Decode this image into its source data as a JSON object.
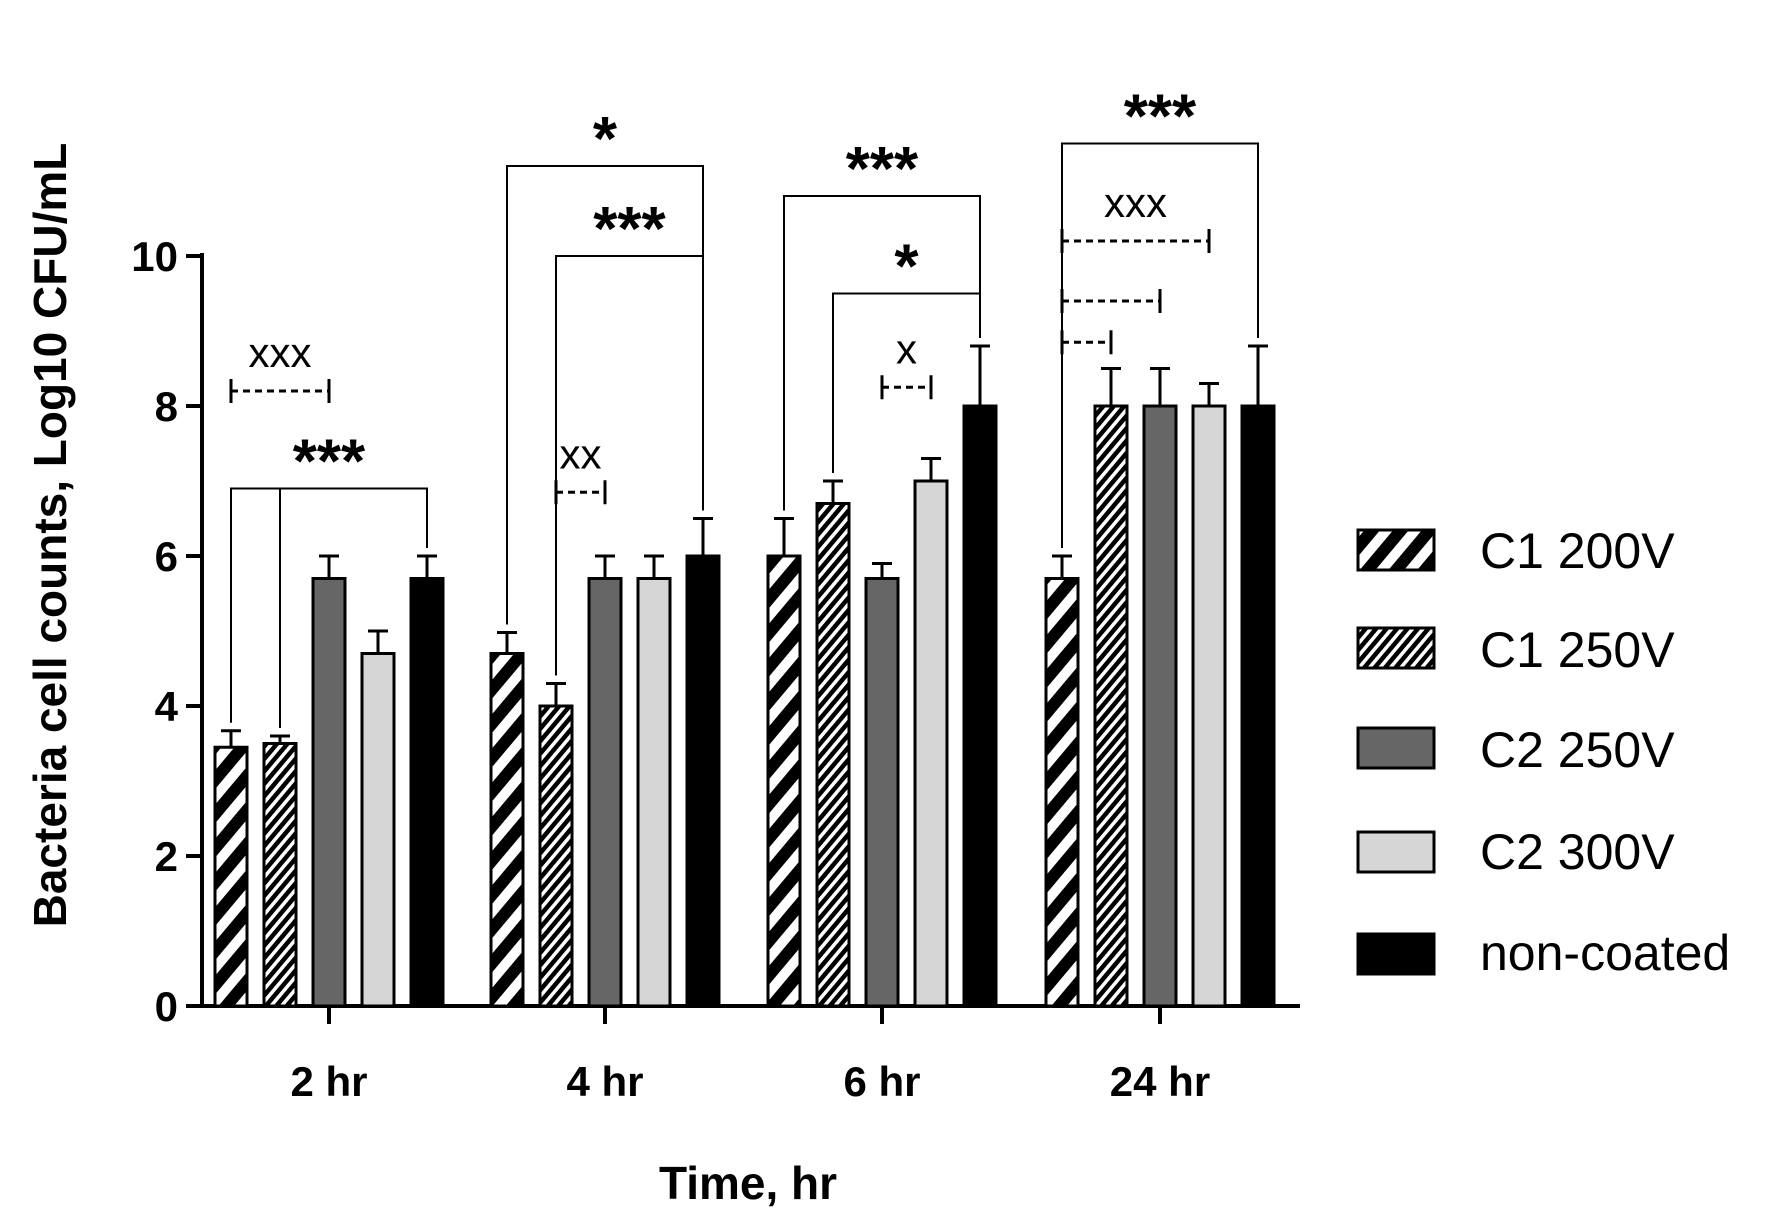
{
  "chart_data": {
    "type": "bar",
    "title": "",
    "xlabel": "Time, hr",
    "ylabel": "Bacteria cell counts, Log10 CFU/mL",
    "ylim": [
      0,
      10
    ],
    "yticks": [
      "0",
      "2",
      "4",
      "6",
      "8",
      "10"
    ],
    "categories": [
      "2 hr",
      "4 hr",
      "6 hr",
      "24 hr"
    ],
    "series": [
      {
        "name": "C1 200V",
        "values": [
          3.45,
          4.7,
          6.0,
          5.7
        ],
        "errors": [
          0.22,
          0.28,
          0.5,
          0.3
        ],
        "pattern": "wide-stripes"
      },
      {
        "name": "C1 250V",
        "values": [
          3.5,
          4.0,
          6.7,
          8.0
        ],
        "errors": [
          0.1,
          0.3,
          0.3,
          0.5
        ],
        "pattern": "fine-stripes"
      },
      {
        "name": "C2 250V",
        "values": [
          5.7,
          5.7,
          5.7,
          8.0
        ],
        "errors": [
          0.3,
          0.3,
          0.2,
          0.5
        ],
        "pattern": "solid-dark"
      },
      {
        "name": "C2 300V",
        "values": [
          4.7,
          5.7,
          7.0,
          8.0
        ],
        "errors": [
          0.3,
          0.3,
          0.3,
          0.3
        ],
        "pattern": "solid-light"
      },
      {
        "name": "non-coated",
        "values": [
          5.7,
          6.0,
          8.0,
          8.0
        ],
        "errors": [
          0.3,
          0.5,
          0.8,
          0.8
        ],
        "pattern": "solid-black"
      }
    ],
    "annotations": [
      {
        "category": "2 hr",
        "type": "dashed",
        "label": "xxx",
        "from": 0,
        "to": 2,
        "y": 8.2
      },
      {
        "category": "2 hr",
        "type": "bracket",
        "label": "***",
        "from": 0,
        "to": 4,
        "y": 6.9,
        "also_from": 1
      },
      {
        "category": "4 hr",
        "type": "bracket",
        "label": "*",
        "from": 0,
        "to": 4,
        "y": 11.2
      },
      {
        "category": "4 hr",
        "type": "bracket",
        "label": "***",
        "from": 1,
        "to": 4,
        "y": 10.0
      },
      {
        "category": "4 hr",
        "type": "dashed",
        "label": "xx",
        "from": 1,
        "to": 2,
        "y": 6.85
      },
      {
        "category": "6 hr",
        "type": "bracket",
        "label": "***",
        "from": 0,
        "to": 4,
        "y": 10.8
      },
      {
        "category": "6 hr",
        "type": "bracket",
        "label": "*",
        "from": 1,
        "to": 4,
        "y": 9.5
      },
      {
        "category": "6 hr",
        "type": "dashed",
        "label": "x",
        "from": 2,
        "to": 3,
        "y": 8.25
      },
      {
        "category": "24 hr",
        "type": "bracket",
        "label": "***",
        "from": 0,
        "to": 4,
        "y": 11.5
      },
      {
        "category": "24 hr",
        "type": "dashed",
        "label": "xxx",
        "from": 0,
        "to": 3,
        "y": 10.2
      },
      {
        "category": "24 hr",
        "type": "dashed",
        "label": "",
        "from": 0,
        "to": 2,
        "y": 9.4
      },
      {
        "category": "24 hr",
        "type": "dashed",
        "label": "",
        "from": 0,
        "to": 1,
        "y": 8.85
      }
    ],
    "legend": "right",
    "grid": false
  }
}
